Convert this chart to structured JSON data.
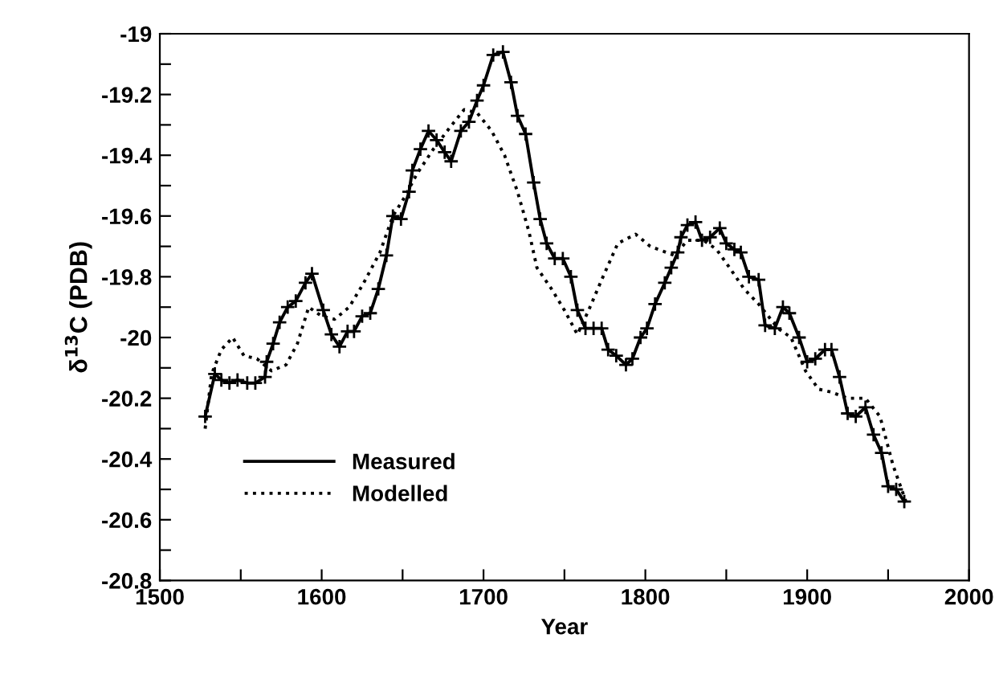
{
  "chart_data": {
    "type": "line",
    "xlabel": "Year",
    "ylabel": "δ$^{13}$C (PDB)",
    "xlim": [
      1500,
      2000
    ],
    "ylim": [
      -20.8,
      -19
    ],
    "xticks": [
      1500,
      {
        "value": 1550,
        "label": null
      },
      1600,
      {
        "value": 1650,
        "label": null
      },
      1700,
      {
        "value": 1750,
        "label": null
      },
      1800,
      {
        "value": 1850,
        "label": null
      },
      1900,
      {
        "value": 1950,
        "label": null
      },
      2000
    ],
    "yticks": [
      -20.8,
      {
        "value": -20.7,
        "label": null
      },
      -20.6,
      {
        "value": -20.5,
        "label": null
      },
      -20.4,
      {
        "value": -20.3,
        "label": null
      },
      -20.2,
      {
        "value": -20.1,
        "label": null
      },
      -20,
      {
        "value": -19.9,
        "label": null
      },
      -19.8,
      {
        "value": -19.7,
        "label": null
      },
      -19.6,
      {
        "value": -19.5,
        "label": null
      },
      -19.4,
      {
        "value": -19.3,
        "label": null
      },
      -19.2,
      {
        "value": -19.1,
        "label": null
      },
      -19
    ],
    "grid": false,
    "legend": "bottom left",
    "series": [
      {
        "name": "Measured",
        "color": "#000000",
        "marker": "cross",
        "line_style": "solid",
        "x": [
          1528,
          1534,
          1538,
          1543,
          1548,
          1554,
          1559,
          1565,
          1566,
          1570,
          1574,
          1579,
          1584,
          1590,
          1594,
          1601,
          1606,
          1611,
          1616,
          1620,
          1625,
          1630,
          1635,
          1640,
          1644,
          1649,
          1654,
          1656,
          1661,
          1666,
          1671,
          1676,
          1680,
          1686,
          1691,
          1696,
          1700,
          1706,
          1712,
          1717,
          1721,
          1726,
          1731,
          1735,
          1739,
          1744,
          1749,
          1754,
          1758,
          1763,
          1768,
          1773,
          1777,
          1782,
          1788,
          1792,
          1797,
          1801,
          1806,
          1812,
          1816,
          1820,
          1822,
          1826,
          1831,
          1835,
          1840,
          1846,
          1850,
          1855,
          1859,
          1864,
          1870,
          1874,
          1880,
          1885,
          1889,
          1895,
          1900,
          1905,
          1911,
          1915,
          1920,
          1925,
          1930,
          1936,
          1941,
          1946,
          1950,
          1955,
          1960
        ],
        "values": [
          -20.26,
          -20.12,
          -20.14,
          -20.15,
          -20.14,
          -20.15,
          -20.15,
          -20.13,
          -20.08,
          -20.02,
          -19.95,
          -19.9,
          -19.88,
          -19.82,
          -19.79,
          -19.91,
          -19.99,
          -20.03,
          -19.98,
          -19.98,
          -19.93,
          -19.92,
          -19.84,
          -19.73,
          -19.6,
          -19.61,
          -19.52,
          -19.45,
          -19.38,
          -19.32,
          -19.35,
          -19.39,
          -19.42,
          -19.32,
          -19.29,
          -19.22,
          -19.17,
          -19.07,
          -19.06,
          -19.16,
          -19.27,
          -19.33,
          -19.49,
          -19.61,
          -19.69,
          -19.74,
          -19.74,
          -19.8,
          -19.91,
          -19.97,
          -19.97,
          -19.97,
          -20.04,
          -20.06,
          -20.09,
          -20.07,
          -20.0,
          -19.97,
          -19.89,
          -19.82,
          -19.77,
          -19.72,
          -19.67,
          -19.63,
          -19.62,
          -19.68,
          -19.67,
          -19.64,
          -19.69,
          -19.71,
          -19.72,
          -19.8,
          -19.81,
          -19.96,
          -19.97,
          -19.9,
          -19.92,
          -20.0,
          -20.08,
          -20.07,
          -20.04,
          -20.04,
          -20.13,
          -20.25,
          -20.26,
          -20.23,
          -20.32,
          -20.38,
          -20.49,
          -20.5,
          -20.54
        ]
      },
      {
        "name": "Modelled",
        "color": "#000000",
        "marker": "none",
        "line_style": "dotted",
        "x": [
          1528,
          1532,
          1538,
          1545,
          1552,
          1560,
          1569,
          1578,
          1585,
          1592,
          1600,
          1608,
          1617,
          1626,
          1636,
          1644,
          1651,
          1659,
          1669,
          1679,
          1688,
          1696,
          1705,
          1713,
          1721,
          1728,
          1733,
          1742,
          1750,
          1758,
          1765,
          1773,
          1783,
          1794,
          1803,
          1818,
          1826,
          1836,
          1844,
          1852,
          1861,
          1870,
          1882,
          1890,
          1899,
          1907,
          1915,
          1925,
          1936,
          1945,
          1953,
          1961
        ],
        "values": [
          -20.3,
          -20.12,
          -20.04,
          -20.0,
          -20.06,
          -20.07,
          -20.11,
          -20.09,
          -20.02,
          -19.9,
          -19.93,
          -19.94,
          -19.9,
          -19.82,
          -19.72,
          -19.6,
          -19.54,
          -19.46,
          -19.38,
          -19.31,
          -19.25,
          -19.26,
          -19.32,
          -19.4,
          -19.52,
          -19.65,
          -19.77,
          -19.84,
          -19.91,
          -19.99,
          -19.91,
          -19.81,
          -19.69,
          -19.66,
          -19.7,
          -19.73,
          -19.68,
          -19.68,
          -19.71,
          -19.77,
          -19.84,
          -19.89,
          -19.97,
          -20.0,
          -20.11,
          -20.17,
          -20.18,
          -20.2,
          -20.2,
          -20.26,
          -20.42,
          -20.54
        ]
      }
    ]
  }
}
